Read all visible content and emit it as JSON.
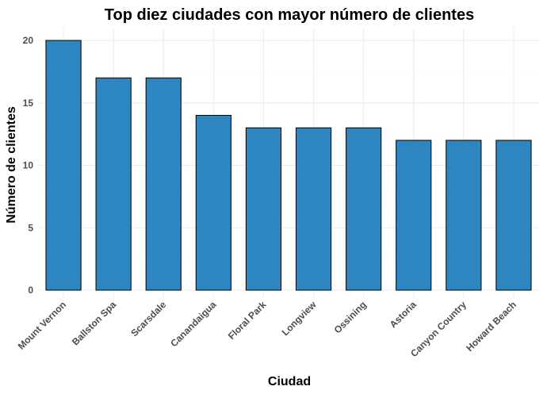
{
  "chart_data": {
    "type": "bar",
    "title": "Top diez ciudades con mayor número de clientes",
    "xlabel": "Ciudad",
    "ylabel": "Número de clientes",
    "categories": [
      "Mount Vernon",
      "Ballston Spa",
      "Scarsdale",
      "Canandaigua",
      "Floral Park",
      "Longview",
      "Ossining",
      "Astoria",
      "Canyon Country",
      "Howard Beach"
    ],
    "values": [
      20,
      17,
      17,
      14,
      13,
      13,
      13,
      12,
      12,
      12
    ],
    "ylim": [
      0,
      21
    ],
    "yticks": [
      0,
      5,
      10,
      15,
      20
    ],
    "grid": true,
    "bar_color": "#2e86c1",
    "bar_outline": "#000000"
  }
}
